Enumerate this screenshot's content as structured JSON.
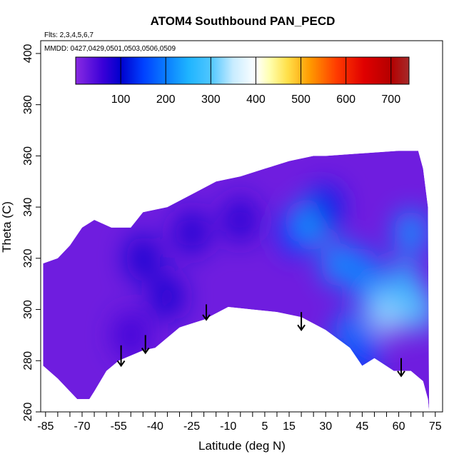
{
  "chart_data": {
    "type": "heatmap",
    "title": "ATOM4 Southbound PAN_PECD",
    "flights_note": "Flts: 2,3,4,5,6,7",
    "dates_note": "MMDD: 0427,0429,0501,0503,0506,0509",
    "xlabel": "Latitude (deg N)",
    "ylabel": "Theta (C)",
    "xlim": [
      -87,
      78
    ],
    "ylim": [
      260,
      405
    ],
    "x_ticks": [
      -85,
      -70,
      -55,
      -40,
      -25,
      -10,
      5,
      15,
      30,
      45,
      60,
      75
    ],
    "x_tick_labels": [
      "-85",
      "-70",
      "-55",
      "-40",
      "-25",
      "-10",
      "5",
      "15",
      "30",
      "45",
      "60",
      "75"
    ],
    "x_minor_step": 5,
    "y_ticks": [
      260,
      280,
      300,
      320,
      340,
      360,
      380,
      400
    ],
    "y_tick_labels": [
      "260",
      "280",
      "300",
      "320",
      "340",
      "360",
      "380",
      "400"
    ],
    "colorbar": {
      "range": [
        0,
        740
      ],
      "ticks": [
        100,
        200,
        300,
        400,
        500,
        600,
        700
      ],
      "tick_labels": [
        "100",
        "200",
        "300",
        "400",
        "500",
        "600",
        "700"
      ],
      "stops": [
        {
          "v": 0,
          "color": "#8a2be2"
        },
        {
          "v": 60,
          "color": "#3a00d8"
        },
        {
          "v": 100,
          "color": "#0000cd"
        },
        {
          "v": 150,
          "color": "#0040ff"
        },
        {
          "v": 200,
          "color": "#0a7cff"
        },
        {
          "v": 250,
          "color": "#1eb4ff"
        },
        {
          "v": 300,
          "color": "#4fc6ff"
        },
        {
          "v": 350,
          "color": "#c9ecff"
        },
        {
          "v": 400,
          "color": "#ffffff"
        },
        {
          "v": 430,
          "color": "#ffffb0"
        },
        {
          "v": 470,
          "color": "#ffe04a"
        },
        {
          "v": 520,
          "color": "#ff9a00"
        },
        {
          "v": 580,
          "color": "#ff3a00"
        },
        {
          "v": 640,
          "color": "#e00000"
        },
        {
          "v": 700,
          "color": "#b40000"
        },
        {
          "v": 740,
          "color": "#a52a2a"
        }
      ]
    },
    "domain_upper_boundary": [
      [
        -86,
        318
      ],
      [
        -80,
        320
      ],
      [
        -75,
        325
      ],
      [
        -70,
        332
      ],
      [
        -65,
        335
      ],
      [
        -58,
        332
      ],
      [
        -50,
        332
      ],
      [
        -45,
        338
      ],
      [
        -35,
        340
      ],
      [
        -25,
        345
      ],
      [
        -15,
        350
      ],
      [
        -5,
        352
      ],
      [
        5,
        355
      ],
      [
        15,
        358
      ],
      [
        25,
        360
      ],
      [
        30,
        360
      ],
      [
        45,
        361
      ],
      [
        60,
        362
      ],
      [
        68,
        362
      ],
      [
        70,
        355
      ],
      [
        72,
        340
      ],
      [
        72.5,
        260
      ]
    ],
    "domain_lower_boundary": [
      [
        72,
        265
      ],
      [
        70,
        272
      ],
      [
        65,
        276
      ],
      [
        58,
        276
      ],
      [
        50,
        281
      ],
      [
        45,
        278
      ],
      [
        40,
        285
      ],
      [
        30,
        292
      ],
      [
        20,
        297
      ],
      [
        10,
        299
      ],
      [
        0,
        300
      ],
      [
        -10,
        301
      ],
      [
        -20,
        296
      ],
      [
        -30,
        293
      ],
      [
        -40,
        285
      ],
      [
        -45,
        284
      ],
      [
        -50,
        282
      ],
      [
        -55,
        280
      ],
      [
        -60,
        276
      ],
      [
        -65,
        268
      ],
      [
        -67,
        265
      ],
      [
        -72,
        265
      ],
      [
        -80,
        273
      ],
      [
        -86,
        278
      ]
    ],
    "field_features": [
      {
        "x": 18,
        "y": 330,
        "value": 150
      },
      {
        "x": 25,
        "y": 335,
        "value": 250
      },
      {
        "x": 35,
        "y": 318,
        "value": 220
      },
      {
        "x": 45,
        "y": 315,
        "value": 200
      },
      {
        "x": 50,
        "y": 305,
        "value": 230
      },
      {
        "x": 55,
        "y": 298,
        "value": 330
      },
      {
        "x": 62,
        "y": 310,
        "value": 260
      },
      {
        "x": 65,
        "y": 330,
        "value": 220
      },
      {
        "x": 68,
        "y": 300,
        "value": 300
      },
      {
        "x": 40,
        "y": 290,
        "value": 200
      },
      {
        "x": 45,
        "y": 282,
        "value": 160
      },
      {
        "x": 30,
        "y": 340,
        "value": 130
      },
      {
        "x": -45,
        "y": 320,
        "value": 90
      },
      {
        "x": -35,
        "y": 305,
        "value": 85
      },
      {
        "x": -25,
        "y": 330,
        "value": 80
      },
      {
        "x": -5,
        "y": 335,
        "value": 75
      },
      {
        "x": -50,
        "y": 290,
        "value": 60
      }
    ],
    "flight_arrows": [
      {
        "x": -54,
        "y_top": 286,
        "y_tip": 278
      },
      {
        "x": -44,
        "y_top": 290,
        "y_tip": 283
      },
      {
        "x": -19,
        "y_top": 302,
        "y_tip": 296
      },
      {
        "x": 20,
        "y_top": 299,
        "y_tip": 292
      },
      {
        "x": 61,
        "y_top": 281,
        "y_tip": 274
      }
    ]
  }
}
